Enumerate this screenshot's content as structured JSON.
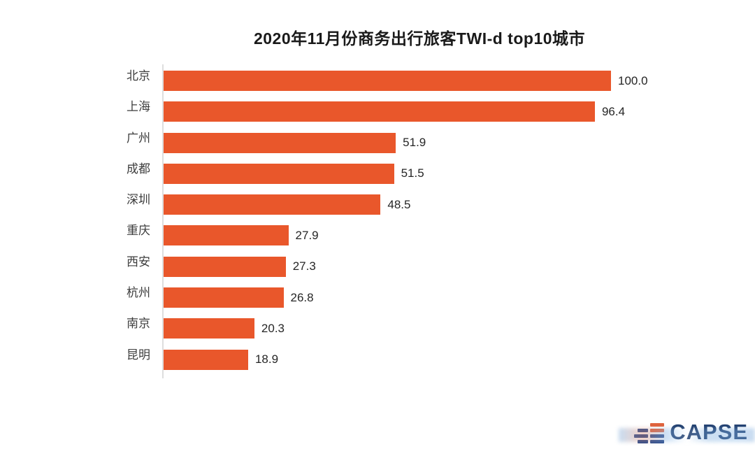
{
  "chart_data": {
    "type": "bar",
    "orientation": "horizontal",
    "title": "2020年11月份商务出行旅客TWI-d top10城市",
    "categories": [
      "北京",
      "上海",
      "广州",
      "成都",
      "深圳",
      "重庆",
      "西安",
      "杭州",
      "南京",
      "昆明"
    ],
    "values": [
      100.0,
      96.4,
      51.9,
      51.5,
      48.5,
      27.9,
      27.3,
      26.8,
      20.3,
      18.9
    ],
    "value_labels": [
      "100.0",
      "96.4",
      "51.9",
      "51.5",
      "48.5",
      "27.9",
      "27.3",
      "26.8",
      "20.3",
      "18.9"
    ],
    "xlim": [
      0,
      100
    ],
    "bar_color": "#E9572B",
    "grid": false,
    "legend": false,
    "value_label_position": "right-of-bar"
  },
  "branding": {
    "logo_text": "CAPSE",
    "logo_text_color": "#203E6E",
    "logo_icon": "stacked-stripes-icon",
    "logo_icon_colors": [
      "#2B4C8C",
      "#E0633C"
    ]
  }
}
